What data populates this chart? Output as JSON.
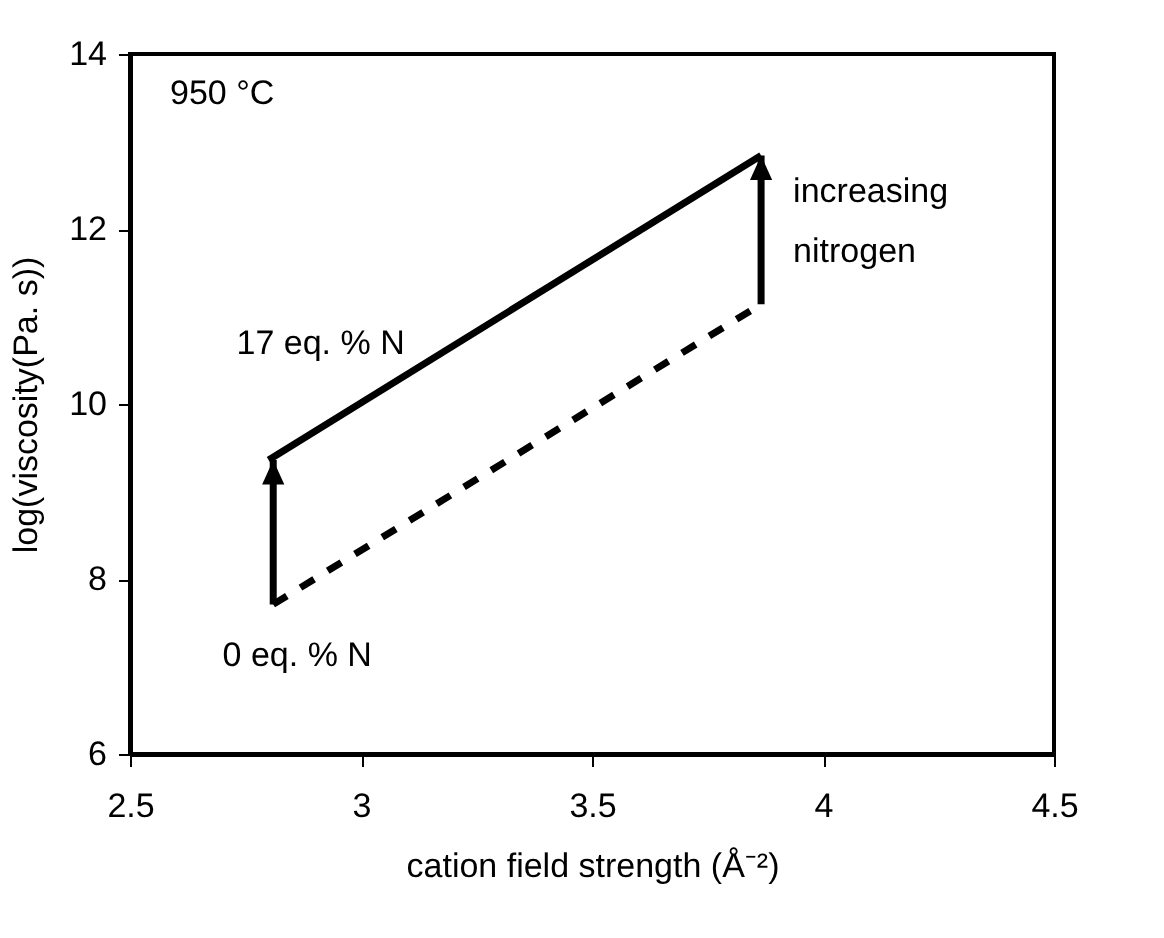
{
  "chart_data": {
    "type": "line",
    "xlabel": "cation field strength (Å⁻²)",
    "ylabel": "log(viscosity(Pa. s))",
    "xlim": [
      2.5,
      4.5
    ],
    "xticks": [
      2.5,
      3,
      3.5,
      4,
      4.5
    ],
    "ylim": [
      6,
      14
    ],
    "yticks": [
      6,
      8,
      10,
      12,
      14
    ],
    "grid": false,
    "series": [
      {
        "name": "0 eq. % N",
        "color": "#000000",
        "line_style": "dashed",
        "x": [
          2.81,
          3.866
        ],
        "values": [
          7.71,
          11.14
        ]
      },
      {
        "name": "17 eq. % N",
        "color": "#000000",
        "line_style": "solid",
        "x": [
          2.8,
          3.866
        ],
        "values": [
          9.36,
          12.84
        ]
      }
    ],
    "annotations": [
      "950 °C",
      "increasing nitrogen"
    ]
  }
}
